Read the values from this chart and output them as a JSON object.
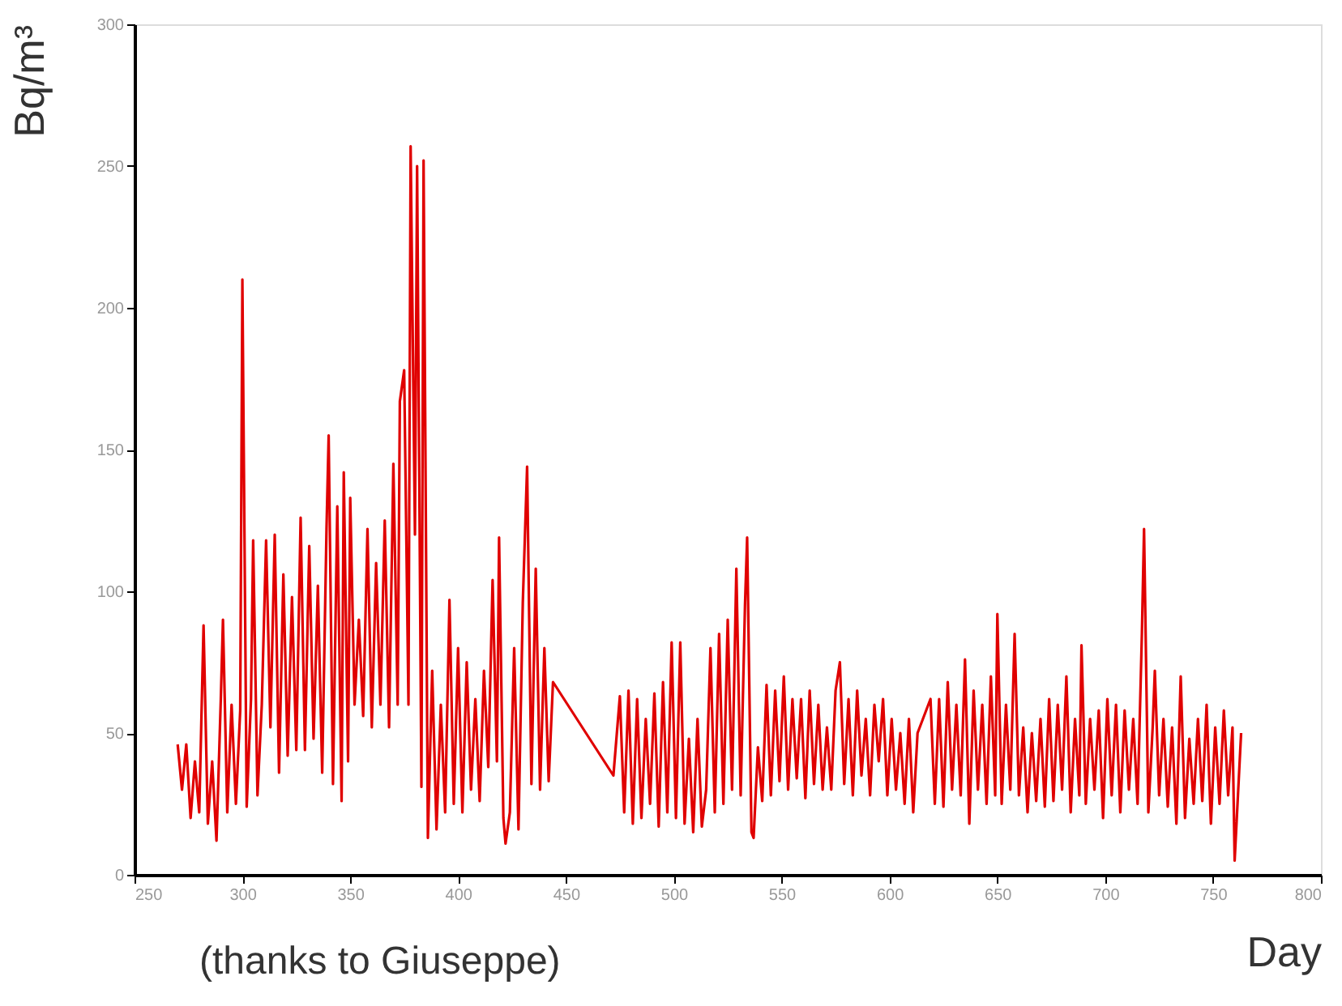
{
  "chart_data": {
    "type": "line",
    "xlabel": "Day",
    "ylabel": "Bq/m³",
    "annotations": [
      "(thanks to Giuseppe)"
    ],
    "xlim": [
      250,
      800
    ],
    "xticks": [
      250,
      300,
      350,
      400,
      450,
      500,
      550,
      600,
      650,
      700,
      750,
      800
    ],
    "ylim": [
      0,
      300
    ],
    "yticks": [
      0,
      50,
      100,
      150,
      200,
      250,
      300
    ],
    "grid": false,
    "marker": "none",
    "line_style": "solid",
    "series": [
      {
        "color": "#e00000",
        "x": [
          270,
          272,
          274,
          276,
          278,
          280,
          282,
          284,
          286,
          288,
          290,
          291,
          293,
          295,
          297,
          299,
          300,
          302,
          304,
          305,
          307,
          309,
          311,
          313,
          315,
          317,
          319,
          321,
          323,
          325,
          327,
          329,
          331,
          333,
          335,
          337,
          339,
          340,
          342,
          344,
          346,
          347,
          349,
          350,
          352,
          354,
          356,
          358,
          360,
          362,
          364,
          366,
          368,
          370,
          372,
          373,
          375,
          377,
          378,
          380,
          381,
          383,
          384,
          386,
          388,
          390,
          392,
          394,
          396,
          398,
          400,
          402,
          404,
          406,
          408,
          410,
          412,
          414,
          416,
          418,
          419,
          421,
          422,
          424,
          426,
          428,
          430,
          432,
          434,
          436,
          438,
          440,
          442,
          444,
          472,
          475,
          477,
          479,
          481,
          483,
          485,
          487,
          489,
          491,
          493,
          495,
          497,
          499,
          501,
          503,
          505,
          507,
          509,
          511,
          513,
          515,
          517,
          519,
          521,
          523,
          525,
          527,
          529,
          531,
          533,
          534,
          536,
          537,
          539,
          541,
          543,
          545,
          547,
          549,
          551,
          553,
          555,
          557,
          559,
          561,
          563,
          565,
          567,
          569,
          571,
          573,
          575,
          577,
          579,
          581,
          583,
          585,
          587,
          589,
          591,
          593,
          595,
          597,
          599,
          601,
          603,
          605,
          607,
          609,
          611,
          613,
          619,
          621,
          623,
          625,
          627,
          629,
          631,
          633,
          635,
          637,
          639,
          641,
          643,
          645,
          647,
          649,
          650,
          652,
          654,
          656,
          658,
          660,
          662,
          664,
          666,
          668,
          670,
          672,
          674,
          676,
          678,
          680,
          682,
          684,
          686,
          688,
          689,
          691,
          693,
          695,
          697,
          699,
          701,
          703,
          705,
          707,
          709,
          711,
          713,
          715,
          717,
          718,
          720,
          722,
          723,
          725,
          727,
          729,
          731,
          733,
          735,
          737,
          739,
          741,
          743,
          745,
          747,
          749,
          751,
          753,
          755,
          757,
          759,
          760,
          762,
          763
        ],
        "values": [
          46,
          30,
          46,
          20,
          40,
          22,
          88,
          18,
          40,
          12,
          62,
          90,
          22,
          60,
          25,
          58,
          210,
          24,
          62,
          118,
          28,
          60,
          118,
          52,
          120,
          36,
          106,
          42,
          98,
          44,
          126,
          44,
          116,
          48,
          102,
          36,
          122,
          155,
          32,
          130,
          26,
          142,
          40,
          133,
          60,
          90,
          56,
          122,
          52,
          110,
          60,
          125,
          52,
          145,
          60,
          167,
          178,
          60,
          257,
          120,
          250,
          31,
          252,
          13,
          72,
          16,
          60,
          22,
          97,
          25,
          80,
          22,
          75,
          30,
          62,
          26,
          72,
          38,
          104,
          40,
          119,
          20,
          11,
          22,
          80,
          16,
          96,
          144,
          32,
          108,
          30,
          80,
          33,
          68,
          35,
          63,
          22,
          65,
          18,
          62,
          20,
          55,
          25,
          64,
          17,
          68,
          22,
          82,
          20,
          82,
          18,
          48,
          15,
          55,
          17,
          30,
          80,
          22,
          85,
          25,
          90,
          30,
          108,
          28,
          95,
          119,
          15,
          13,
          45,
          26,
          67,
          28,
          65,
          33,
          70,
          30,
          62,
          34,
          62,
          27,
          65,
          32,
          60,
          30,
          52,
          30,
          65,
          75,
          32,
          62,
          28,
          65,
          35,
          55,
          28,
          60,
          40,
          62,
          28,
          55,
          30,
          50,
          25,
          55,
          22,
          50,
          62,
          25,
          62,
          24,
          68,
          30,
          60,
          28,
          76,
          18,
          65,
          30,
          60,
          25,
          70,
          28,
          92,
          25,
          60,
          30,
          85,
          28,
          52,
          22,
          50,
          26,
          55,
          24,
          62,
          26,
          60,
          30,
          70,
          22,
          55,
          28,
          81,
          25,
          55,
          30,
          58,
          20,
          62,
          28,
          60,
          22,
          58,
          30,
          55,
          25,
          85,
          122,
          22,
          52,
          72,
          28,
          55,
          24,
          52,
          18,
          70,
          20,
          48,
          25,
          55,
          26,
          60,
          18,
          52,
          25,
          58,
          28,
          52,
          5,
          35,
          50
        ]
      }
    ]
  }
}
